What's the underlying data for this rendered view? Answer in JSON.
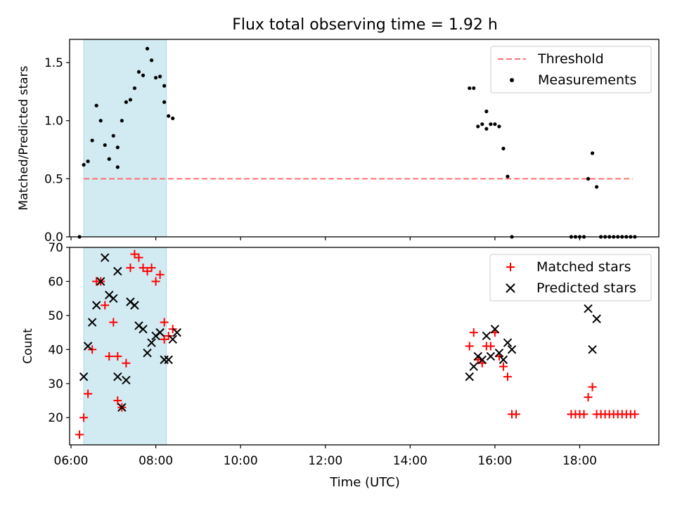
{
  "title": "Flux total observing time = 1.92 h",
  "xlabel": "Time (UTC)",
  "colors": {
    "span": "#add8e6",
    "threshold": "#ff7070",
    "matched": "#ff0000",
    "predicted": "#000000",
    "measurement": "#000000"
  },
  "chart_data": [
    {
      "type": "scatter",
      "ylabel": "Matched/Predicted stars",
      "ylim": [
        0,
        1.7
      ],
      "xlim": [
        "05:58",
        "19:52"
      ],
      "yticks": [
        0.0,
        0.5,
        1.0,
        1.5
      ],
      "ytick_labels": [
        "0.0",
        "0.5",
        "1.0",
        "1.5"
      ],
      "shaded_span": [
        "06:18",
        "08:15"
      ],
      "threshold": {
        "y": 0.5,
        "x_range": [
          "06:18",
          "19:15"
        ]
      },
      "legend": {
        "position": "top-right",
        "entries": [
          "Threshold",
          "Measurements"
        ]
      },
      "series": [
        {
          "name": "Measurements",
          "points": [
            [
              "06:12",
              0.0
            ],
            [
              "06:18",
              0.62
            ],
            [
              "06:24",
              0.65
            ],
            [
              "06:30",
              0.83
            ],
            [
              "06:36",
              1.13
            ],
            [
              "06:42",
              1.0
            ],
            [
              "06:48",
              0.79
            ],
            [
              "06:54",
              0.67
            ],
            [
              "07:00",
              0.87
            ],
            [
              "07:06",
              0.6
            ],
            [
              "07:06",
              0.77
            ],
            [
              "07:12",
              1.0
            ],
            [
              "07:18",
              1.16
            ],
            [
              "07:24",
              1.18
            ],
            [
              "07:30",
              1.28
            ],
            [
              "07:36",
              1.42
            ],
            [
              "07:42",
              1.39
            ],
            [
              "07:48",
              1.62
            ],
            [
              "07:54",
              1.52
            ],
            [
              "08:00",
              1.37
            ],
            [
              "08:06",
              1.38
            ],
            [
              "08:12",
              1.16
            ],
            [
              "08:12",
              1.3
            ],
            [
              "08:18",
              1.04
            ],
            [
              "08:24",
              1.02
            ],
            [
              "15:24",
              1.28
            ],
            [
              "15:30",
              1.28
            ],
            [
              "15:36",
              0.95
            ],
            [
              "15:42",
              0.97
            ],
            [
              "15:48",
              0.93
            ],
            [
              "15:48",
              1.08
            ],
            [
              "15:54",
              0.97
            ],
            [
              "16:00",
              0.97
            ],
            [
              "16:06",
              0.95
            ],
            [
              "16:12",
              0.76
            ],
            [
              "16:18",
              0.52
            ],
            [
              "16:24",
              0.0
            ],
            [
              "17:48",
              0.0
            ],
            [
              "17:54",
              0.0
            ],
            [
              "18:00",
              0.0
            ],
            [
              "18:06",
              0.0
            ],
            [
              "18:12",
              0.5
            ],
            [
              "18:18",
              0.72
            ],
            [
              "18:24",
              0.43
            ],
            [
              "18:30",
              0.0
            ],
            [
              "18:36",
              0.0
            ],
            [
              "18:42",
              0.0
            ],
            [
              "18:48",
              0.0
            ],
            [
              "18:54",
              0.0
            ],
            [
              "19:00",
              0.0
            ],
            [
              "19:06",
              0.0
            ],
            [
              "19:12",
              0.0
            ],
            [
              "19:18",
              0.0
            ]
          ]
        }
      ]
    },
    {
      "type": "scatter",
      "ylabel": "Count",
      "ylim": [
        12,
        70
      ],
      "xlim": [
        "05:58",
        "19:52"
      ],
      "yticks": [
        20,
        30,
        40,
        50,
        60,
        70
      ],
      "ytick_labels": [
        "20",
        "30",
        "40",
        "50",
        "60",
        "70"
      ],
      "xticks": [
        "06:00",
        "08:00",
        "10:00",
        "12:00",
        "14:00",
        "16:00",
        "18:00"
      ],
      "xtick_labels": [
        "06:00",
        "08:00",
        "10:00",
        "12:00",
        "14:00",
        "16:00",
        "18:00"
      ],
      "shaded_span": [
        "06:18",
        "08:15"
      ],
      "legend": {
        "position": "top-right",
        "entries": [
          "Matched stars",
          "Predicted stars"
        ]
      },
      "series": [
        {
          "name": "Matched stars",
          "marker": "+",
          "points": [
            [
              "06:12",
              15
            ],
            [
              "06:18",
              20
            ],
            [
              "06:24",
              27
            ],
            [
              "06:30",
              40
            ],
            [
              "06:36",
              60
            ],
            [
              "06:42",
              60
            ],
            [
              "06:48",
              53
            ],
            [
              "06:54",
              38
            ],
            [
              "07:00",
              48
            ],
            [
              "07:06",
              38
            ],
            [
              "07:06",
              25
            ],
            [
              "07:12",
              23
            ],
            [
              "07:18",
              36
            ],
            [
              "07:24",
              64
            ],
            [
              "07:30",
              68
            ],
            [
              "07:36",
              67
            ],
            [
              "07:42",
              64
            ],
            [
              "07:48",
              63
            ],
            [
              "07:54",
              64
            ],
            [
              "08:00",
              60
            ],
            [
              "08:06",
              62
            ],
            [
              "08:12",
              43
            ],
            [
              "08:12",
              48
            ],
            [
              "08:18",
              44
            ],
            [
              "08:24",
              46
            ],
            [
              "15:24",
              41
            ],
            [
              "15:30",
              45
            ],
            [
              "15:36",
              37
            ],
            [
              "15:42",
              36
            ],
            [
              "15:48",
              41
            ],
            [
              "15:54",
              41
            ],
            [
              "16:00",
              45
            ],
            [
              "16:06",
              38
            ],
            [
              "16:12",
              35
            ],
            [
              "16:18",
              32
            ],
            [
              "16:24",
              21
            ],
            [
              "16:30",
              21
            ],
            [
              "17:48",
              21
            ],
            [
              "17:54",
              21
            ],
            [
              "18:00",
              21
            ],
            [
              "18:06",
              21
            ],
            [
              "18:12",
              26
            ],
            [
              "18:18",
              29
            ],
            [
              "18:24",
              21
            ],
            [
              "18:30",
              21
            ],
            [
              "18:36",
              21
            ],
            [
              "18:42",
              21
            ],
            [
              "18:48",
              21
            ],
            [
              "18:54",
              21
            ],
            [
              "19:00",
              21
            ],
            [
              "19:06",
              21
            ],
            [
              "19:12",
              21
            ],
            [
              "19:18",
              21
            ]
          ]
        },
        {
          "name": "Predicted stars",
          "marker": "x",
          "points": [
            [
              "06:18",
              32
            ],
            [
              "06:24",
              41
            ],
            [
              "06:30",
              48
            ],
            [
              "06:36",
              53
            ],
            [
              "06:42",
              60
            ],
            [
              "06:48",
              67
            ],
            [
              "06:54",
              56
            ],
            [
              "07:00",
              55
            ],
            [
              "07:06",
              63
            ],
            [
              "07:06",
              32
            ],
            [
              "07:12",
              23
            ],
            [
              "07:18",
              31
            ],
            [
              "07:24",
              54
            ],
            [
              "07:30",
              53
            ],
            [
              "07:36",
              47
            ],
            [
              "07:42",
              46
            ],
            [
              "07:48",
              39
            ],
            [
              "07:54",
              42
            ],
            [
              "08:00",
              44
            ],
            [
              "08:06",
              45
            ],
            [
              "08:12",
              37
            ],
            [
              "08:18",
              37
            ],
            [
              "08:24",
              43
            ],
            [
              "08:30",
              45
            ],
            [
              "15:24",
              32
            ],
            [
              "15:30",
              35
            ],
            [
              "15:36",
              38
            ],
            [
              "15:42",
              37
            ],
            [
              "15:48",
              44
            ],
            [
              "15:54",
              38
            ],
            [
              "16:00",
              46
            ],
            [
              "16:06",
              39
            ],
            [
              "16:12",
              37
            ],
            [
              "16:18",
              42
            ],
            [
              "16:24",
              40
            ],
            [
              "18:12",
              52
            ],
            [
              "18:18",
              40
            ],
            [
              "18:24",
              49
            ]
          ]
        }
      ]
    }
  ]
}
